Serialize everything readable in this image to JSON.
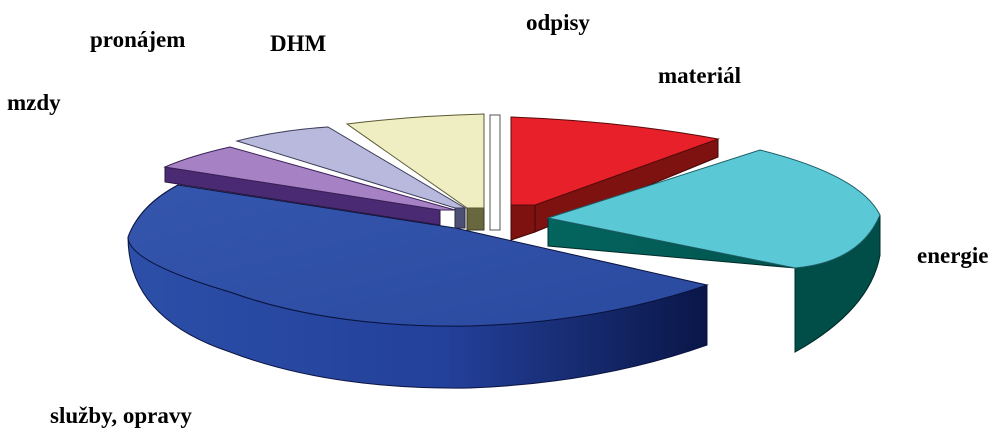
{
  "chart_data": {
    "type": "pie",
    "title": "",
    "labels": [
      "odpisy",
      "materiál",
      "energie",
      "služby, opravy",
      "mzdy",
      "pronájem",
      "DHM"
    ],
    "values": [
      0.5,
      12,
      25,
      45,
      4,
      5.5,
      8
    ],
    "colors": [
      "#ffffff",
      "#e8202a",
      "#5bc8d6",
      "#2c4fa3",
      "#a682c4",
      "#b8b9dd",
      "#efeec2"
    ],
    "side_colors": [
      "#d8d8d8",
      "#7e1210",
      "#03655f",
      "#1a2f82",
      "#4a2a72",
      "#4d4f74",
      "#68673e"
    ],
    "three_d": true,
    "exploded": true,
    "legend": "none"
  }
}
